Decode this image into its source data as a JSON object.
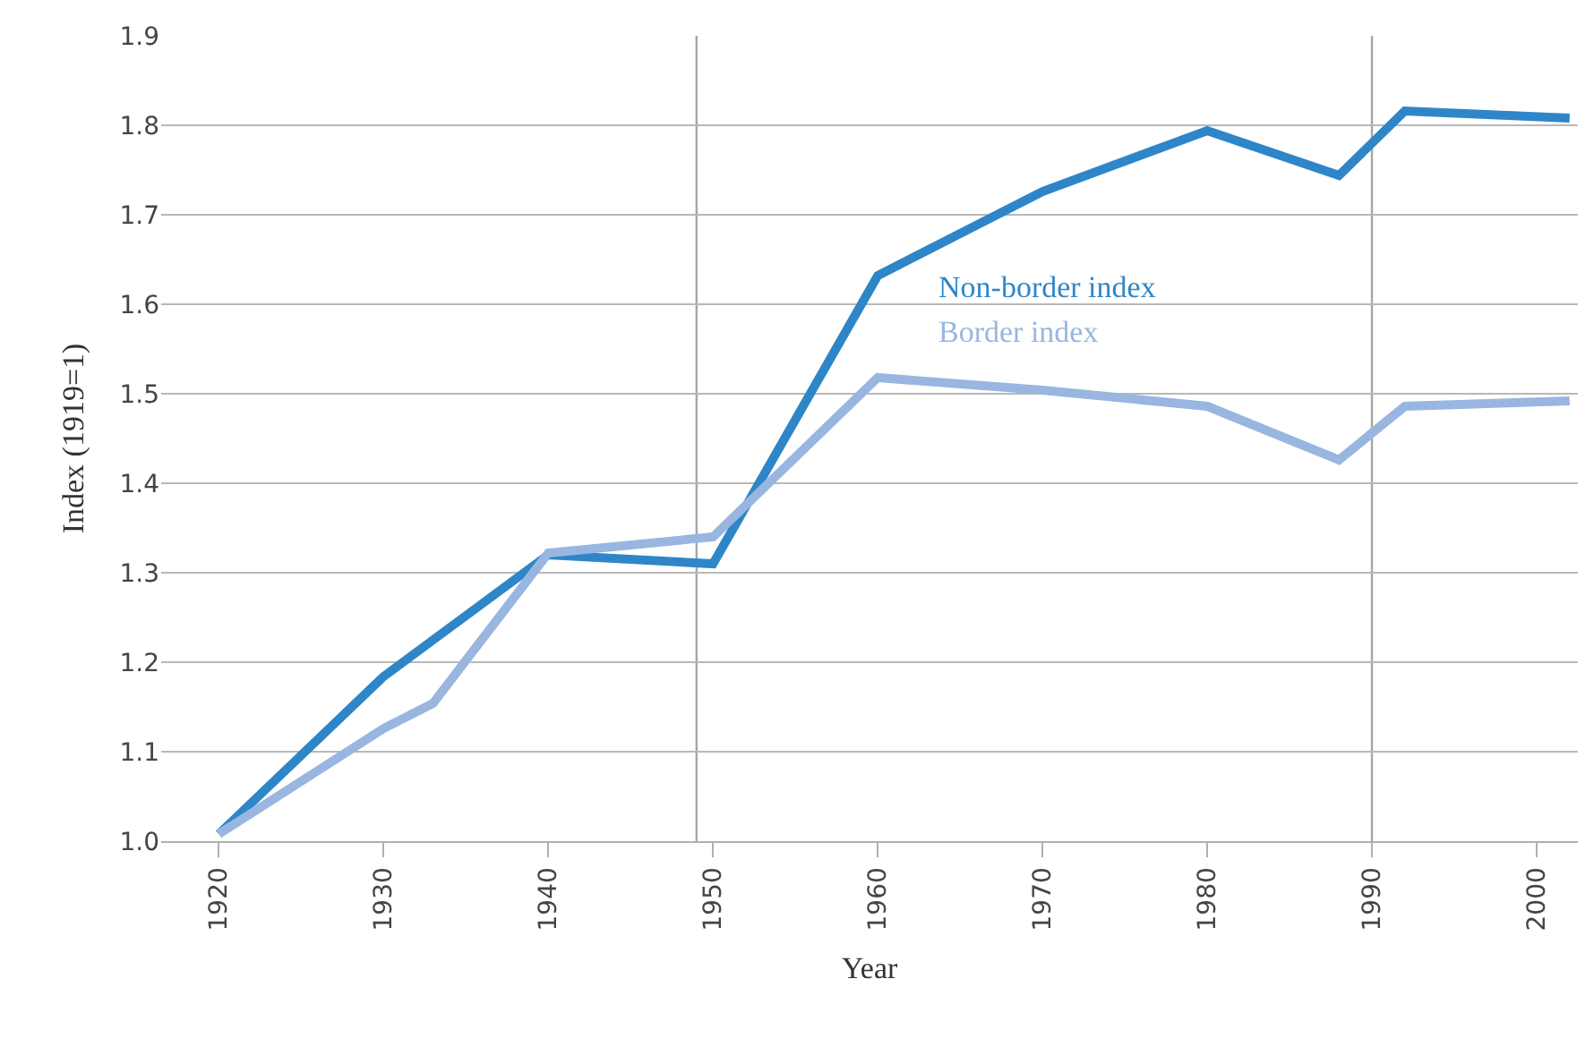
{
  "chart_data": {
    "type": "line",
    "xlabel": "Year",
    "ylabel": "Index (1919=1)",
    "xlim": [
      1916.5,
      2002.5
    ],
    "ylim": [
      1.0,
      1.9
    ],
    "xticks": [
      1920,
      1930,
      1940,
      1950,
      1960,
      1970,
      1980,
      1990,
      2000
    ],
    "yticks": [
      {
        "value": 1.0,
        "label": "1.0"
      },
      1.1,
      1.2,
      1.3,
      1.4,
      1.5,
      1.6,
      1.7,
      1.8,
      1.9
    ],
    "grid": "y",
    "legend": false,
    "line_style": "solid",
    "marker": "none",
    "ref_lines": [
      {
        "axis": "x",
        "value": 1949,
        "label": null,
        "color": "#a6a6a6"
      },
      {
        "axis": "x",
        "value": 1990,
        "label": null,
        "color": "#a6a6a6"
      }
    ],
    "series": [
      {
        "name": "Non-border index",
        "color": "#2e86c8",
        "x": [
          1920,
          1930,
          1940,
          1950,
          1960,
          1970,
          1980,
          1988,
          1992,
          2002
        ],
        "values": [
          1.008,
          1.184,
          1.32,
          1.31,
          1.632,
          1.726,
          1.794,
          1.744,
          1.816,
          1.808
        ]
      },
      {
        "name": "Border index",
        "color": "#98b6e0",
        "x": [
          1920,
          1930,
          1933,
          1940,
          1950,
          1960,
          1970,
          1980,
          1988,
          1992,
          2002
        ],
        "values": [
          1.008,
          1.126,
          1.154,
          1.322,
          1.34,
          1.518,
          1.504,
          1.486,
          1.426,
          1.486,
          1.492
        ]
      }
    ]
  }
}
